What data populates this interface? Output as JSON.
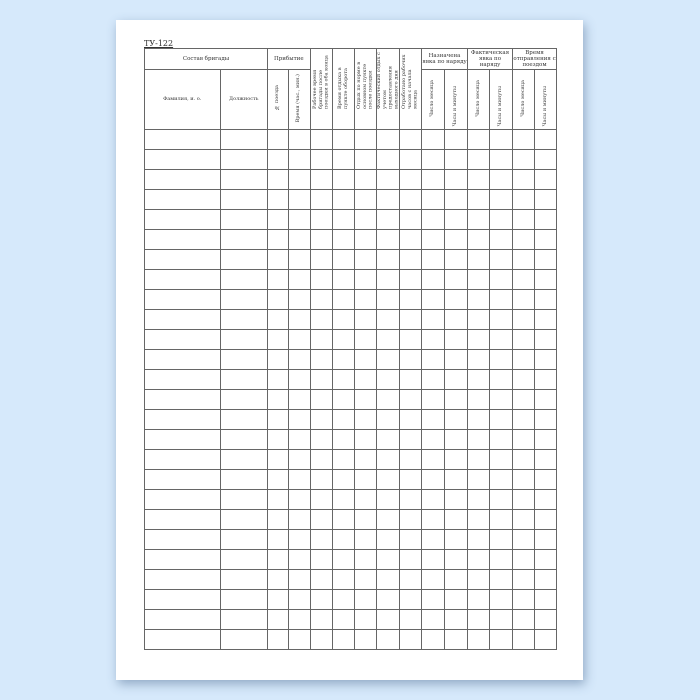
{
  "form_code": "ТУ-122",
  "headers": {
    "crew": "Состав бригады",
    "arrival": "Прибытие",
    "crew_name": "Фамилия, и. о.",
    "position": "Должность",
    "train_no": "№ поезда",
    "arrival_time": "Время (час., мин.)",
    "work_time": "Рабочее время бригады после поездки в оба конца",
    "rest_turnaround": "Время отдыха в пункте оборота",
    "rest_norm": "Отдых по норме в основном пункте после поездки",
    "rest_actual": "Фактический отдых с учетом предоставления выходного дня",
    "worked_hours": "Отработано рабочих часов с начала месяца",
    "assigned": "Назначена явка по наряду",
    "actual": "Фактическая явка по наряду",
    "departure": "Время отправления с поездом",
    "day": "Число месяца",
    "hm": "Часы и минуты"
  },
  "row_count": 26
}
